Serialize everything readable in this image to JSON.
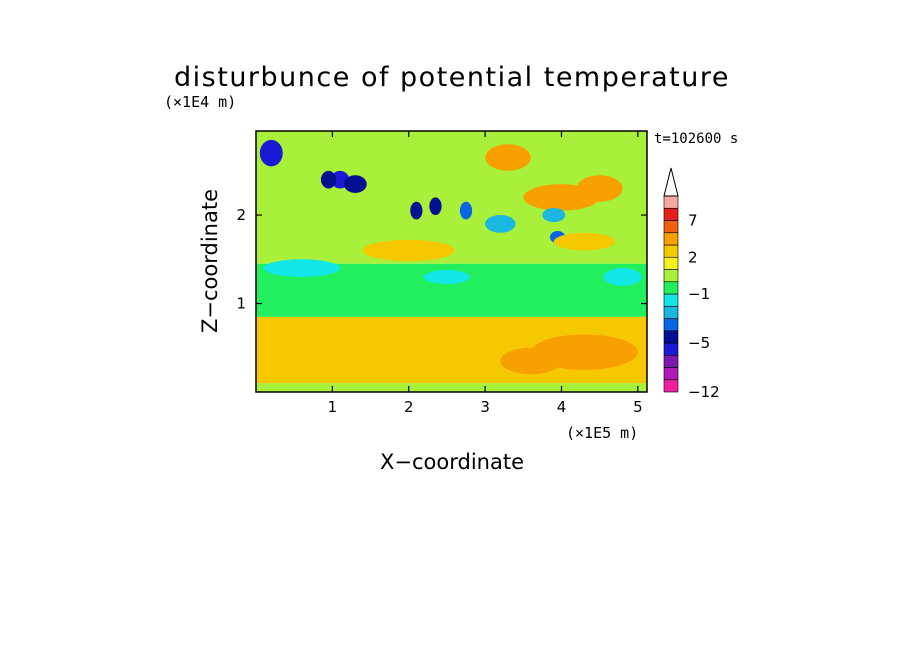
{
  "chart_data": {
    "type": "heatmap",
    "title": "disturbunce of potential temperature",
    "time_label": "t=102600 s",
    "xlabel": "X−coordinate",
    "ylabel": "Z−coordinate",
    "x_unit": "(×1E5 m)",
    "y_unit": "(×1E4 m)",
    "xlim": [
      0,
      5.12
    ],
    "ylim": [
      0,
      2.95
    ],
    "x_ticks": [
      1,
      2,
      3,
      4,
      5
    ],
    "x_tick_labels": [
      "1",
      "2",
      "3",
      "4",
      "5"
    ],
    "y_ticks": [
      1,
      2
    ],
    "y_tick_labels": [
      "1",
      "2"
    ],
    "colorbar": {
      "levels": [
        -12,
        -10,
        -8,
        -6,
        -5,
        -4,
        -3,
        -2,
        -1,
        0,
        1,
        2,
        3,
        5,
        7,
        9,
        11
      ],
      "tick_values": [
        -12,
        -5,
        -1,
        2,
        7
      ],
      "tick_labels": [
        "−12",
        "−5",
        "−1",
        "2",
        "7"
      ],
      "colors": [
        "#ee1f9f",
        "#b01ab5",
        "#7a1ab0",
        "#1a1ad6",
        "#001090",
        "#0a64e6",
        "#1ab7e0",
        "#12e6e6",
        "#22ef5e",
        "#a8f03a",
        "#f2f21a",
        "#f5c800",
        "#f8a000",
        "#f06010",
        "#e61e1e",
        "#f5a8a0"
      ],
      "extend": "max"
    },
    "features": [
      {
        "kind": "band",
        "x": [
          0,
          5.12
        ],
        "z": [
          0,
          0.1
        ],
        "value": 0.5
      },
      {
        "kind": "band",
        "x": [
          0,
          5.12
        ],
        "z": [
          0.1,
          0.85
        ],
        "value": 2.2
      },
      {
        "kind": "band",
        "x": [
          0,
          5.12
        ],
        "z": [
          0.85,
          1.45
        ],
        "value": -0.5
      },
      {
        "kind": "band",
        "x": [
          0,
          5.12
        ],
        "z": [
          1.45,
          2.95
        ],
        "value": 0.6
      },
      {
        "kind": "blob",
        "x": 4.3,
        "z": 0.45,
        "rx": 0.7,
        "rz": 0.2,
        "value": 3.5
      },
      {
        "kind": "blob",
        "x": 3.6,
        "z": 0.35,
        "rx": 0.4,
        "rz": 0.15,
        "value": 3.5
      },
      {
        "kind": "blob",
        "x": 0.2,
        "z": 2.7,
        "rx": 0.15,
        "rz": 0.15,
        "value": -6
      },
      {
        "kind": "blob",
        "x": 1.1,
        "z": 2.4,
        "rx": 0.12,
        "rz": 0.1,
        "value": -6
      },
      {
        "kind": "blob",
        "x": 0.95,
        "z": 2.4,
        "rx": 0.1,
        "rz": 0.1,
        "value": -5
      },
      {
        "kind": "blob",
        "x": 1.3,
        "z": 2.35,
        "rx": 0.15,
        "rz": 0.1,
        "value": -5
      },
      {
        "kind": "blob",
        "x": 2.1,
        "z": 2.05,
        "rx": 0.08,
        "rz": 0.1,
        "value": -5
      },
      {
        "kind": "blob",
        "x": 2.35,
        "z": 2.1,
        "rx": 0.08,
        "rz": 0.1,
        "value": -5
      },
      {
        "kind": "blob",
        "x": 2.75,
        "z": 2.05,
        "rx": 0.08,
        "rz": 0.1,
        "value": -4
      },
      {
        "kind": "blob",
        "x": 3.95,
        "z": 1.75,
        "rx": 0.1,
        "rz": 0.07,
        "value": -4
      },
      {
        "kind": "blob",
        "x": 4.0,
        "z": 2.2,
        "rx": 0.5,
        "rz": 0.15,
        "value": 3.5
      },
      {
        "kind": "blob",
        "x": 4.5,
        "z": 2.3,
        "rx": 0.3,
        "rz": 0.15,
        "value": 3.5
      },
      {
        "kind": "blob",
        "x": 3.3,
        "z": 2.65,
        "rx": 0.3,
        "rz": 0.15,
        "value": 3.0
      },
      {
        "kind": "blob",
        "x": 4.3,
        "z": 1.7,
        "rx": 0.4,
        "rz": 0.1,
        "value": 2.5
      },
      {
        "kind": "blob",
        "x": 2.0,
        "z": 1.6,
        "rx": 0.6,
        "rz": 0.12,
        "value": 2.2
      },
      {
        "kind": "blob",
        "x": 0.6,
        "z": 1.4,
        "rx": 0.5,
        "rz": 0.1,
        "value": -1.5
      },
      {
        "kind": "blob",
        "x": 2.5,
        "z": 1.3,
        "rx": 0.3,
        "rz": 0.08,
        "value": -1.2
      },
      {
        "kind": "blob",
        "x": 4.8,
        "z": 1.3,
        "rx": 0.25,
        "rz": 0.1,
        "value": -1.5
      },
      {
        "kind": "blob",
        "x": 3.2,
        "z": 1.9,
        "rx": 0.2,
        "rz": 0.1,
        "value": -2.5
      },
      {
        "kind": "blob",
        "x": 3.9,
        "z": 2.0,
        "rx": 0.15,
        "rz": 0.08,
        "value": -2.5
      }
    ]
  }
}
